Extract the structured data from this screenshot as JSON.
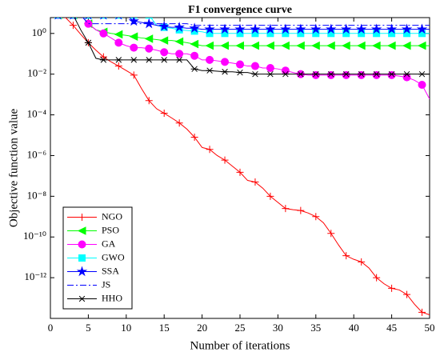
{
  "chart_data": {
    "type": "line",
    "title": "F1 convergence curve",
    "x_label": "Number of iterations",
    "y_label": "Objective function value",
    "x": [
      1,
      2,
      3,
      4,
      5,
      6,
      7,
      8,
      9,
      10,
      11,
      12,
      13,
      14,
      15,
      16,
      17,
      18,
      19,
      20,
      21,
      22,
      23,
      24,
      25,
      26,
      27,
      28,
      29,
      30,
      31,
      32,
      33,
      34,
      35,
      36,
      37,
      38,
      39,
      40,
      41,
      42,
      43,
      44,
      45,
      46,
      47,
      48,
      49,
      50
    ],
    "xlim": [
      0,
      50
    ],
    "xticks": [
      0,
      5,
      10,
      15,
      20,
      25,
      30,
      35,
      40,
      45,
      50
    ],
    "ylim": [
      1e-14,
      6
    ],
    "yscale": "log",
    "yticks": [
      {
        "value": 1e-12,
        "label": "10⁻¹²"
      },
      {
        "value": 1e-10,
        "label": "10⁻¹⁰"
      },
      {
        "value": 1e-08,
        "label": "10⁻⁸"
      },
      {
        "value": 1e-06,
        "label": "10⁻⁶"
      },
      {
        "value": 0.0001,
        "label": "10⁻⁴"
      },
      {
        "value": 0.01,
        "label": "10⁻²"
      },
      {
        "value": 1,
        "label": "10⁰"
      }
    ],
    "legend": "lower left",
    "grid": false,
    "series": [
      {
        "name": "NGO",
        "color": "#ff0000",
        "marker": "plus",
        "linestyle": "solid",
        "values": [
          8,
          6,
          2.5,
          0.9,
          0.35,
          0.15,
          0.07,
          0.04,
          0.025,
          0.015,
          0.009,
          0.002,
          0.0005,
          0.0002,
          0.00012,
          7e-05,
          4e-05,
          2e-05,
          8e-06,
          2.5e-06,
          2e-06,
          1e-06,
          6e-07,
          3e-07,
          1.5e-07,
          6e-08,
          5e-08,
          2.5e-08,
          1e-08,
          5e-09,
          2.5e-09,
          2.2e-09,
          2e-09,
          1.5e-09,
          1e-09,
          5e-10,
          1.5e-10,
          4e-11,
          1.2e-11,
          8e-12,
          6e-12,
          3e-12,
          1e-12,
          5e-13,
          3e-13,
          2.5e-13,
          1.5e-13,
          5e-14,
          2e-14,
          1.5e-14
        ]
      },
      {
        "name": "PSO",
        "color": "#00ff00",
        "marker": "triangle-left",
        "linestyle": "solid",
        "values": [
          8,
          8,
          8,
          8,
          3,
          1.5,
          1.2,
          1.0,
          0.9,
          0.8,
          0.7,
          0.6,
          0.55,
          0.5,
          0.45,
          0.45,
          0.4,
          0.35,
          0.3,
          0.25,
          0.25,
          0.25,
          0.25,
          0.25,
          0.25,
          0.25,
          0.25,
          0.25,
          0.25,
          0.25,
          0.25,
          0.25,
          0.25,
          0.25,
          0.25,
          0.25,
          0.25,
          0.25,
          0.25,
          0.25,
          0.25,
          0.25,
          0.25,
          0.25,
          0.25,
          0.25,
          0.25,
          0.25,
          0.25,
          0.25
        ]
      },
      {
        "name": "GA",
        "color": "#ff00ff",
        "marker": "circle",
        "linestyle": "solid",
        "values": [
          8,
          8,
          8,
          8,
          3,
          1.5,
          1,
          0.6,
          0.35,
          0.25,
          0.2,
          0.2,
          0.18,
          0.15,
          0.12,
          0.1,
          0.1,
          0.1,
          0.08,
          0.05,
          0.05,
          0.045,
          0.04,
          0.035,
          0.03,
          0.025,
          0.025,
          0.02,
          0.02,
          0.018,
          0.015,
          0.012,
          0.01,
          0.009,
          0.009,
          0.009,
          0.009,
          0.009,
          0.009,
          0.009,
          0.009,
          0.009,
          0.009,
          0.009,
          0.009,
          0.008,
          0.007,
          0.005,
          0.003,
          0.0006
        ]
      },
      {
        "name": "GWO",
        "color": "#00ffff",
        "marker": "square",
        "linestyle": "solid",
        "values": [
          8,
          8,
          8,
          8,
          8,
          8,
          8,
          8,
          8,
          8,
          8,
          8,
          8,
          2.5,
          2,
          1.8,
          1.5,
          1.4,
          1.3,
          1.2,
          1,
          1,
          1,
          1,
          1,
          1,
          1,
          1,
          1,
          1,
          1,
          1,
          1,
          1,
          1,
          1,
          1,
          1,
          1,
          1,
          1,
          1,
          1,
          1,
          1,
          1,
          1,
          1,
          1,
          1
        ]
      },
      {
        "name": "SSA",
        "color": "#0000ff",
        "marker": "star",
        "linestyle": "solid",
        "values": [
          8,
          8,
          8,
          8,
          8,
          8,
          8,
          8,
          8,
          8,
          4,
          3.5,
          3,
          2.5,
          2.2,
          2,
          2,
          1.8,
          1.8,
          1.6,
          1.6,
          1.6,
          1.6,
          1.6,
          1.6,
          1.6,
          1.6,
          1.6,
          1.6,
          1.6,
          1.6,
          1.6,
          1.6,
          1.6,
          1.6,
          1.6,
          1.6,
          1.6,
          1.6,
          1.6,
          1.6,
          1.6,
          1.6,
          1.6,
          1.6,
          1.6,
          1.6,
          1.6,
          1.6,
          1.6
        ]
      },
      {
        "name": "JS",
        "color": "#0000ff",
        "marker": "none",
        "linestyle": "dashdot",
        "values": [
          8,
          8,
          8,
          8,
          3,
          3,
          3,
          3,
          3,
          3,
          3,
          3,
          3,
          3,
          3,
          3,
          3,
          3,
          2.5,
          2.5,
          2.5,
          2.5,
          2.5,
          2.5,
          2.5,
          2.5,
          2.5,
          2.5,
          2.5,
          2.5,
          2.5,
          2.5,
          2.5,
          2.5,
          2.5,
          2.5,
          2.5,
          2.5,
          2.5,
          2.5,
          2.5,
          2.5,
          2.5,
          2.5,
          2.5,
          2.5,
          2.5,
          2.5,
          2.5,
          2.5
        ]
      },
      {
        "name": "HHO",
        "color": "#000000",
        "marker": "asterisk",
        "linestyle": "solid",
        "values": [
          8,
          8,
          8,
          1.5,
          0.35,
          0.06,
          0.05,
          0.05,
          0.05,
          0.05,
          0.05,
          0.05,
          0.05,
          0.05,
          0.05,
          0.05,
          0.05,
          0.05,
          0.018,
          0.015,
          0.015,
          0.014,
          0.013,
          0.013,
          0.012,
          0.012,
          0.01,
          0.01,
          0.01,
          0.01,
          0.01,
          0.01,
          0.01,
          0.01,
          0.01,
          0.01,
          0.01,
          0.01,
          0.01,
          0.01,
          0.01,
          0.01,
          0.01,
          0.01,
          0.01,
          0.01,
          0.01,
          0.01,
          0.01,
          0.01
        ]
      }
    ]
  }
}
